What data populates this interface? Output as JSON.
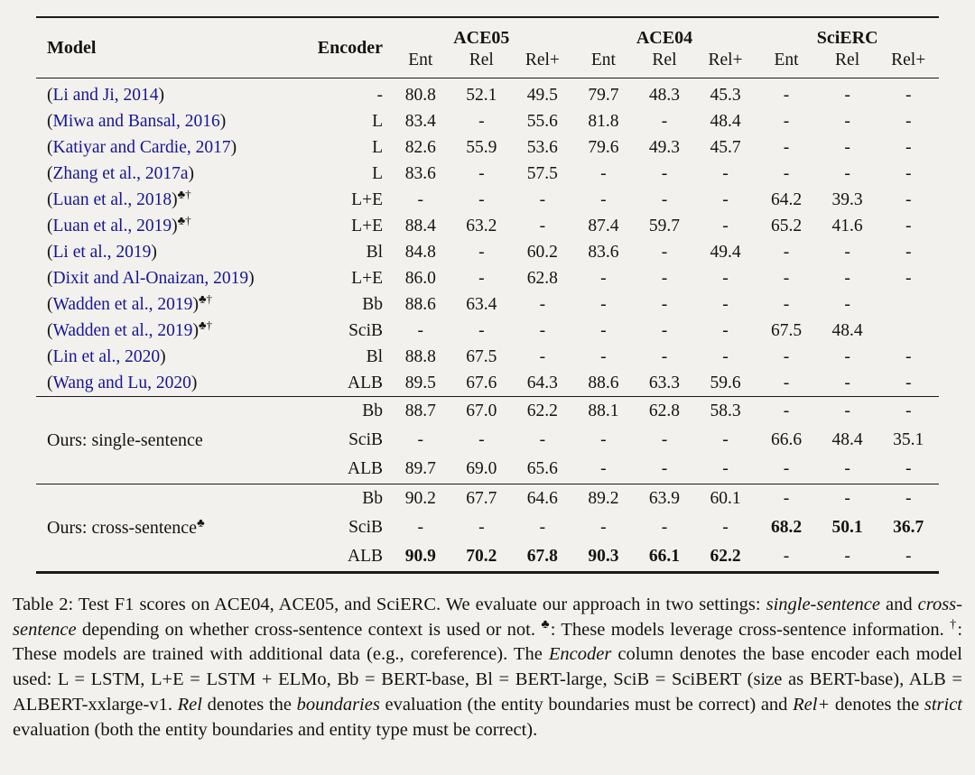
{
  "table": {
    "header": {
      "model": "Model",
      "encoder": "Encoder",
      "groups": [
        {
          "label": "ACE05"
        },
        {
          "label": "ACE04"
        },
        {
          "label": "SciERC"
        }
      ],
      "subcols": [
        "Ent",
        "Rel",
        "Rel+"
      ]
    },
    "sections": [
      {
        "group_label": null,
        "group_sup": "",
        "rows": [
          {
            "model": {
              "open": "(",
              "cite": "Li and Ji, 2014",
              "close": ")",
              "sup": ""
            },
            "encoder": "-",
            "values": [
              "80.8",
              "52.1",
              "49.5",
              "79.7",
              "48.3",
              "45.3",
              "-",
              "-",
              "-"
            ]
          },
          {
            "model": {
              "open": "(",
              "cite": "Miwa and Bansal, 2016",
              "close": ")",
              "sup": ""
            },
            "encoder": "L",
            "values": [
              "83.4",
              "-",
              "55.6",
              "81.8",
              "-",
              "48.4",
              "-",
              "-",
              "-"
            ]
          },
          {
            "model": {
              "open": "(",
              "cite": "Katiyar and Cardie, 2017",
              "close": ")",
              "sup": ""
            },
            "encoder": "L",
            "values": [
              "82.6",
              "55.9",
              "53.6",
              "79.6",
              "49.3",
              "45.7",
              "-",
              "-",
              "-"
            ]
          },
          {
            "model": {
              "open": "(",
              "cite": "Zhang et al., 2017a",
              "close": ")",
              "sup": ""
            },
            "encoder": "L",
            "values": [
              "83.6",
              "-",
              "57.5",
              "-",
              "-",
              "-",
              "-",
              "-",
              "-"
            ]
          },
          {
            "model": {
              "open": "(",
              "cite": "Luan et al., 2018",
              "close": ")",
              "sup": "♣†"
            },
            "encoder": "L+E",
            "values": [
              "-",
              "-",
              "-",
              "-",
              "-",
              "-",
              "64.2",
              "39.3",
              "-"
            ]
          },
          {
            "model": {
              "open": "(",
              "cite": "Luan et al., 2019",
              "close": ")",
              "sup": "♣†"
            },
            "encoder": "L+E",
            "values": [
              "88.4",
              "63.2",
              "-",
              "87.4",
              "59.7",
              "-",
              "65.2",
              "41.6",
              "-"
            ]
          },
          {
            "model": {
              "open": "(",
              "cite": "Li et al., 2019",
              "close": ")",
              "sup": ""
            },
            "encoder": "Bl",
            "values": [
              "84.8",
              "-",
              "60.2",
              "83.6",
              "-",
              "49.4",
              "-",
              "-",
              "-"
            ]
          },
          {
            "model": {
              "open": "(",
              "cite": "Dixit and Al-Onaizan, 2019",
              "close": ")",
              "sup": ""
            },
            "encoder": "L+E",
            "values": [
              "86.0",
              "-",
              "62.8",
              "-",
              "-",
              "-",
              "-",
              "-",
              "-"
            ]
          },
          {
            "model": {
              "open": "(",
              "cite": "Wadden et al., 2019",
              "close": ")",
              "sup": "♣†"
            },
            "encoder": "Bb",
            "values": [
              "88.6",
              "63.4",
              "-",
              "-",
              "-",
              "-",
              "-",
              "-",
              ""
            ]
          },
          {
            "model": {
              "open": "(",
              "cite": "Wadden et al., 2019",
              "close": ")",
              "sup": "♣†"
            },
            "encoder": "SciB",
            "values": [
              "-",
              "-",
              "-",
              "-",
              "-",
              "-",
              "67.5",
              "48.4",
              ""
            ]
          },
          {
            "model": {
              "open": "(",
              "cite": "Lin et al., 2020",
              "close": ")",
              "sup": ""
            },
            "encoder": "Bl",
            "values": [
              "88.8",
              "67.5",
              "-",
              "-",
              "-",
              "-",
              "-",
              "-",
              "-"
            ]
          },
          {
            "model": {
              "open": "(",
              "cite": "Wang and Lu, 2020",
              "close": ")",
              "sup": ""
            },
            "encoder": "ALB",
            "values": [
              "89.5",
              "67.6",
              "64.3",
              "88.6",
              "63.3",
              "59.6",
              "-",
              "-",
              "-"
            ]
          }
        ]
      },
      {
        "group_label": "Ours: single-sentence",
        "group_sup": "",
        "rows": [
          {
            "encoder": "Bb",
            "values": [
              "88.7",
              "67.0",
              "62.2",
              "88.1",
              "62.8",
              "58.3",
              "-",
              "-",
              "-"
            ]
          },
          {
            "encoder": "SciB",
            "values": [
              "-",
              "-",
              "-",
              "-",
              "-",
              "-",
              "66.6",
              "48.4",
              "35.1"
            ]
          },
          {
            "encoder": "ALB",
            "values": [
              "89.7",
              "69.0",
              "65.6",
              "-",
              "-",
              "-",
              "-",
              "-",
              "-"
            ]
          }
        ]
      },
      {
        "group_label": "Ours: cross-sentence",
        "group_sup": "♣",
        "rows": [
          {
            "encoder": "Bb",
            "values": [
              "90.2",
              "67.7",
              "64.6",
              "89.2",
              "63.9",
              "60.1",
              "-",
              "-",
              "-"
            ]
          },
          {
            "encoder": "SciB",
            "values": [
              "-",
              "-",
              "-",
              "-",
              "-",
              "-",
              "68.2",
              "50.1",
              "36.7"
            ],
            "bold_mask": [
              0,
              0,
              0,
              0,
              0,
              0,
              1,
              1,
              1
            ]
          },
          {
            "encoder": "ALB",
            "values": [
              "90.9",
              "70.2",
              "67.8",
              "90.3",
              "66.1",
              "62.2",
              "-",
              "-",
              "-"
            ],
            "bold_mask": [
              1,
              1,
              1,
              1,
              1,
              1,
              0,
              0,
              0
            ]
          }
        ]
      }
    ]
  },
  "caption": {
    "segments": [
      {
        "t": "Table 2: Test F1 scores on ACE04, ACE05, and SciERC. We evaluate our approach in two settings: ",
        "s": "n"
      },
      {
        "t": "single-sentence",
        "s": "i"
      },
      {
        "t": " and ",
        "s": "n"
      },
      {
        "t": "cross-sentence",
        "s": "i"
      },
      {
        "t": " depending on whether cross-sentence context is used or not. ",
        "s": "n"
      },
      {
        "t": "♣",
        "s": "sup"
      },
      {
        "t": ": These models leverage cross-sentence information. ",
        "s": "n"
      },
      {
        "t": "†",
        "s": "sup"
      },
      {
        "t": ": These models are trained with additional data (e.g., coreference). The ",
        "s": "n"
      },
      {
        "t": "Encoder",
        "s": "i"
      },
      {
        "t": " column denotes the base encoder each model used: L = LSTM, L+E = LSTM + ELMo, Bb = BERT-base, Bl = BERT-large, SciB = SciBERT (size as BERT-base), ALB = ALBERT-xxlarge-v1. ",
        "s": "n"
      },
      {
        "t": "Rel",
        "s": "i"
      },
      {
        "t": " denotes the ",
        "s": "n"
      },
      {
        "t": "boundaries",
        "s": "i"
      },
      {
        "t": " evaluation (the entity boundaries must be correct) and ",
        "s": "n"
      },
      {
        "t": "Rel+",
        "s": "i"
      },
      {
        "t": " denotes the ",
        "s": "n"
      },
      {
        "t": "strict",
        "s": "i"
      },
      {
        "t": " evaluation (both the entity boundaries and entity type must be correct).",
        "s": "n"
      }
    ]
  },
  "colors": {
    "citation_blue": "#15159b",
    "rule_black": "#1b1b1b",
    "background": "#f3f1ed"
  }
}
